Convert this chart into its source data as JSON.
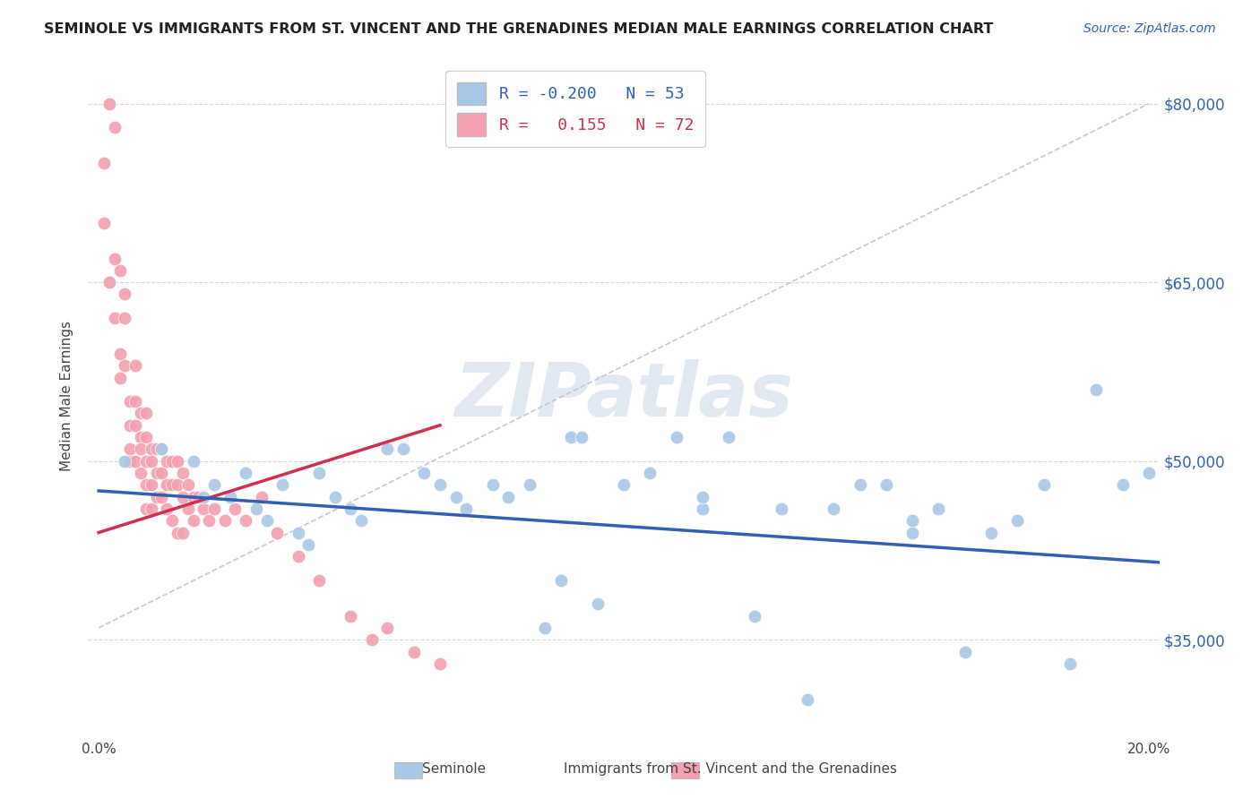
{
  "title": "SEMINOLE VS IMMIGRANTS FROM ST. VINCENT AND THE GRENADINES MEDIAN MALE EARNINGS CORRELATION CHART",
  "source": "Source: ZipAtlas.com",
  "ylabel": "Median Male Earnings",
  "watermark": "ZIPatlas",
  "xlim": [
    -0.002,
    0.202
  ],
  "ylim": [
    27000,
    84000
  ],
  "yticks": [
    35000,
    50000,
    65000,
    80000
  ],
  "ytick_labels": [
    "$35,000",
    "$50,000",
    "$65,000",
    "$80,000"
  ],
  "xticks": [
    0.0,
    0.05,
    0.1,
    0.15,
    0.2
  ],
  "xtick_labels": [
    "0.0%",
    "",
    "",
    "",
    "20.0%"
  ],
  "blue_R": -0.2,
  "blue_N": 53,
  "pink_R": 0.155,
  "pink_N": 72,
  "blue_color": "#a8c8e8",
  "pink_color": "#f4a0b0",
  "blue_line_color": "#3060b0",
  "pink_line_color": "#d03050",
  "dashed_line_color": "#c0c8d8",
  "grid_color": "#d0d8e8",
  "legend_blue_label": "Seminole",
  "legend_pink_label": "Immigrants from St. Vincent and the Grenadines",
  "blue_scatter_x": [
    0.005,
    0.012,
    0.018,
    0.02,
    0.022,
    0.025,
    0.028,
    0.03,
    0.032,
    0.035,
    0.038,
    0.04,
    0.042,
    0.045,
    0.048,
    0.05,
    0.055,
    0.058,
    0.062,
    0.065,
    0.068,
    0.07,
    0.075,
    0.078,
    0.082,
    0.085,
    0.088,
    0.09,
    0.092,
    0.095,
    0.1,
    0.105,
    0.11,
    0.115,
    0.115,
    0.12,
    0.125,
    0.13,
    0.135,
    0.14,
    0.145,
    0.15,
    0.155,
    0.155,
    0.16,
    0.165,
    0.17,
    0.175,
    0.18,
    0.185,
    0.19,
    0.195,
    0.2
  ],
  "blue_scatter_y": [
    50000,
    51000,
    50000,
    47000,
    48000,
    47000,
    49000,
    46000,
    45000,
    48000,
    44000,
    43000,
    49000,
    47000,
    46000,
    45000,
    51000,
    51000,
    49000,
    48000,
    47000,
    46000,
    48000,
    47000,
    48000,
    36000,
    40000,
    52000,
    52000,
    38000,
    48000,
    49000,
    52000,
    46000,
    47000,
    52000,
    37000,
    46000,
    30000,
    46000,
    48000,
    48000,
    45000,
    44000,
    46000,
    34000,
    44000,
    45000,
    48000,
    33000,
    56000,
    48000,
    49000
  ],
  "pink_scatter_x": [
    0.001,
    0.001,
    0.002,
    0.002,
    0.003,
    0.003,
    0.003,
    0.004,
    0.004,
    0.004,
    0.005,
    0.005,
    0.005,
    0.006,
    0.006,
    0.006,
    0.006,
    0.007,
    0.007,
    0.007,
    0.007,
    0.008,
    0.008,
    0.008,
    0.008,
    0.009,
    0.009,
    0.009,
    0.009,
    0.009,
    0.01,
    0.01,
    0.01,
    0.01,
    0.011,
    0.011,
    0.011,
    0.012,
    0.012,
    0.012,
    0.013,
    0.013,
    0.013,
    0.014,
    0.014,
    0.014,
    0.015,
    0.015,
    0.015,
    0.016,
    0.016,
    0.016,
    0.017,
    0.017,
    0.018,
    0.018,
    0.019,
    0.02,
    0.021,
    0.022,
    0.024,
    0.026,
    0.028,
    0.031,
    0.034,
    0.038,
    0.042,
    0.048,
    0.052,
    0.055,
    0.06,
    0.065
  ],
  "pink_scatter_y": [
    75000,
    70000,
    65000,
    80000,
    78000,
    67000,
    62000,
    66000,
    59000,
    57000,
    64000,
    62000,
    58000,
    55000,
    53000,
    51000,
    50000,
    58000,
    55000,
    53000,
    50000,
    54000,
    52000,
    51000,
    49000,
    54000,
    52000,
    50000,
    48000,
    46000,
    51000,
    50000,
    48000,
    46000,
    51000,
    49000,
    47000,
    51000,
    49000,
    47000,
    50000,
    48000,
    46000,
    50000,
    48000,
    45000,
    50000,
    48000,
    44000,
    49000,
    47000,
    44000,
    48000,
    46000,
    47000,
    45000,
    47000,
    46000,
    45000,
    46000,
    45000,
    46000,
    45000,
    47000,
    44000,
    42000,
    40000,
    37000,
    35000,
    36000,
    34000,
    33000
  ],
  "pink_line_x": [
    0.0,
    0.065
  ],
  "pink_line_y": [
    44000,
    53000
  ],
  "blue_line_x": [
    0.0,
    0.202
  ],
  "blue_line_y": [
    47500,
    41500
  ]
}
